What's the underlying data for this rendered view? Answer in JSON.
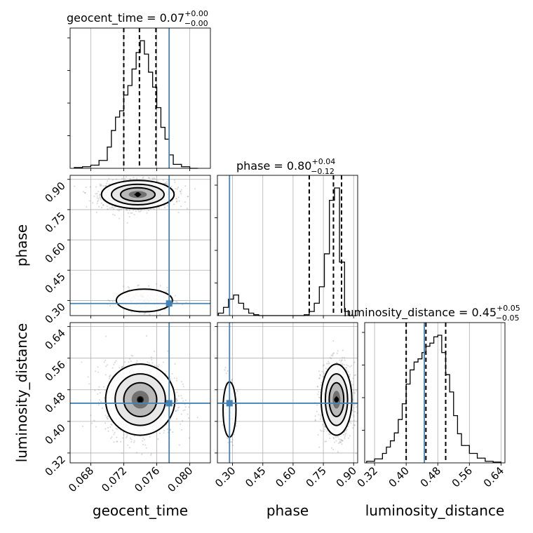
{
  "chart_data": {
    "type": "corner",
    "parameters": [
      "geocent_time",
      "phase",
      "luminosity_distance"
    ],
    "truths": {
      "geocent_time": 0.0775,
      "phase": 0.285,
      "luminosity_distance": 0.446
    },
    "titles": {
      "geocent_time": {
        "name": "geocent_time",
        "value": "0.07",
        "plus": "+0.00",
        "minus": "−0.00"
      },
      "phase": {
        "name": "phase",
        "value": "0.80",
        "plus": "+0.04",
        "minus": "−0.12"
      },
      "luminosity_distance": {
        "name": "luminosity_distance",
        "value": "0.45",
        "plus": "+0.05",
        "minus": "−0.05"
      }
    },
    "axes": {
      "geocent_time": {
        "range": [
          0.0655,
          0.0825
        ],
        "ticks": [
          "0.068",
          "0.072",
          "0.076",
          "0.080"
        ],
        "tick_values": [
          0.068,
          0.072,
          0.076,
          0.08
        ]
      },
      "phase": {
        "range": [
          0.225,
          0.92
        ],
        "ticks": [
          "0.30",
          "0.45",
          "0.60",
          "0.75",
          "0.90"
        ],
        "tick_values": [
          0.3,
          0.45,
          0.6,
          0.75,
          0.9
        ]
      },
      "luminosity_distance": {
        "range": [
          0.295,
          0.65
        ],
        "ticks": [
          "0.32",
          "0.40",
          "0.48",
          "0.56",
          "0.64"
        ],
        "tick_values": [
          0.32,
          0.4,
          0.48,
          0.56,
          0.64
        ]
      }
    },
    "histograms": {
      "geocent_time": {
        "bin_edges": [
          0.066,
          0.067,
          0.068,
          0.069,
          0.07,
          0.0705,
          0.071,
          0.0715,
          0.072,
          0.0725,
          0.073,
          0.0735,
          0.074,
          0.0745,
          0.075,
          0.0755,
          0.076,
          0.0765,
          0.077,
          0.0775,
          0.078,
          0.079,
          0.08,
          0.081
        ],
        "counts": [
          1,
          2,
          4,
          10,
          27,
          48,
          65,
          73,
          93,
          105,
          126,
          147,
          162,
          145,
          122,
          103,
          77,
          52,
          37,
          17,
          5,
          2,
          0
        ],
        "quantiles": [
          0.072,
          0.0739,
          0.0759
        ]
      },
      "phase": {
        "bin_edges": [
          0.23,
          0.255,
          0.28,
          0.305,
          0.33,
          0.355,
          0.38,
          0.405,
          0.43,
          0.455,
          0.48,
          0.505,
          0.53,
          0.555,
          0.58,
          0.605,
          0.63,
          0.655,
          0.68,
          0.705,
          0.73,
          0.755,
          0.78,
          0.805,
          0.83,
          0.855,
          0.88
        ],
        "counts": [
          3,
          10,
          20,
          25,
          15,
          8,
          3,
          1,
          0,
          0,
          0,
          0,
          0,
          0,
          0,
          0,
          0,
          1,
          5,
          15,
          35,
          75,
          140,
          155,
          65,
          5
        ],
        "quantiles": [
          0.68,
          0.8,
          0.84
        ]
      },
      "luminosity_distance": {
        "bin_edges": [
          0.3,
          0.32,
          0.34,
          0.35,
          0.36,
          0.37,
          0.38,
          0.39,
          0.4,
          0.41,
          0.42,
          0.43,
          0.44,
          0.45,
          0.46,
          0.47,
          0.48,
          0.49,
          0.5,
          0.51,
          0.52,
          0.53,
          0.54,
          0.56,
          0.58,
          0.6,
          0.62,
          0.64
        ],
        "counts": [
          2,
          5,
          12,
          20,
          28,
          38,
          55,
          75,
          100,
          118,
          128,
          132,
          140,
          148,
          152,
          160,
          162,
          140,
          112,
          90,
          60,
          37,
          22,
          12,
          6,
          2,
          1
        ],
        "quantiles": [
          0.4,
          0.45,
          0.5
        ]
      }
    },
    "density_2d": [
      {
        "x": "geocent_time",
        "y": "phase",
        "modes": [
          {
            "center": [
              0.0737,
              0.825
            ],
            "spread": [
              0.0022,
              0.035
            ],
            "weight": 0.85
          },
          {
            "center": [
              0.0745,
              0.3
            ],
            "spread": [
              0.0017,
              0.028
            ],
            "weight": 0.15
          }
        ]
      },
      {
        "x": "geocent_time",
        "y": "luminosity_distance",
        "modes": [
          {
            "center": [
              0.074,
              0.455
            ],
            "spread": [
              0.0021,
              0.045
            ],
            "weight": 1.0
          }
        ]
      },
      {
        "x": "phase",
        "y": "luminosity_distance",
        "modes": [
          {
            "center": [
              0.815,
              0.455
            ],
            "spread": [
              0.038,
              0.045
            ],
            "weight": 0.85
          },
          {
            "center": [
              0.285,
              0.43
            ],
            "spread": [
              0.016,
              0.035
            ],
            "weight": 0.15
          }
        ]
      }
    ],
    "grid": true
  },
  "colors": {
    "truth": "#4682b4",
    "contour": "#000000",
    "scatter": "#808080",
    "density": "#000000"
  },
  "labels": {
    "x_geocent": "geocent_time",
    "x_phase": "phase",
    "x_lumi": "luminosity_distance",
    "y_phase": "phase",
    "y_lumi": "luminosity_distance"
  }
}
